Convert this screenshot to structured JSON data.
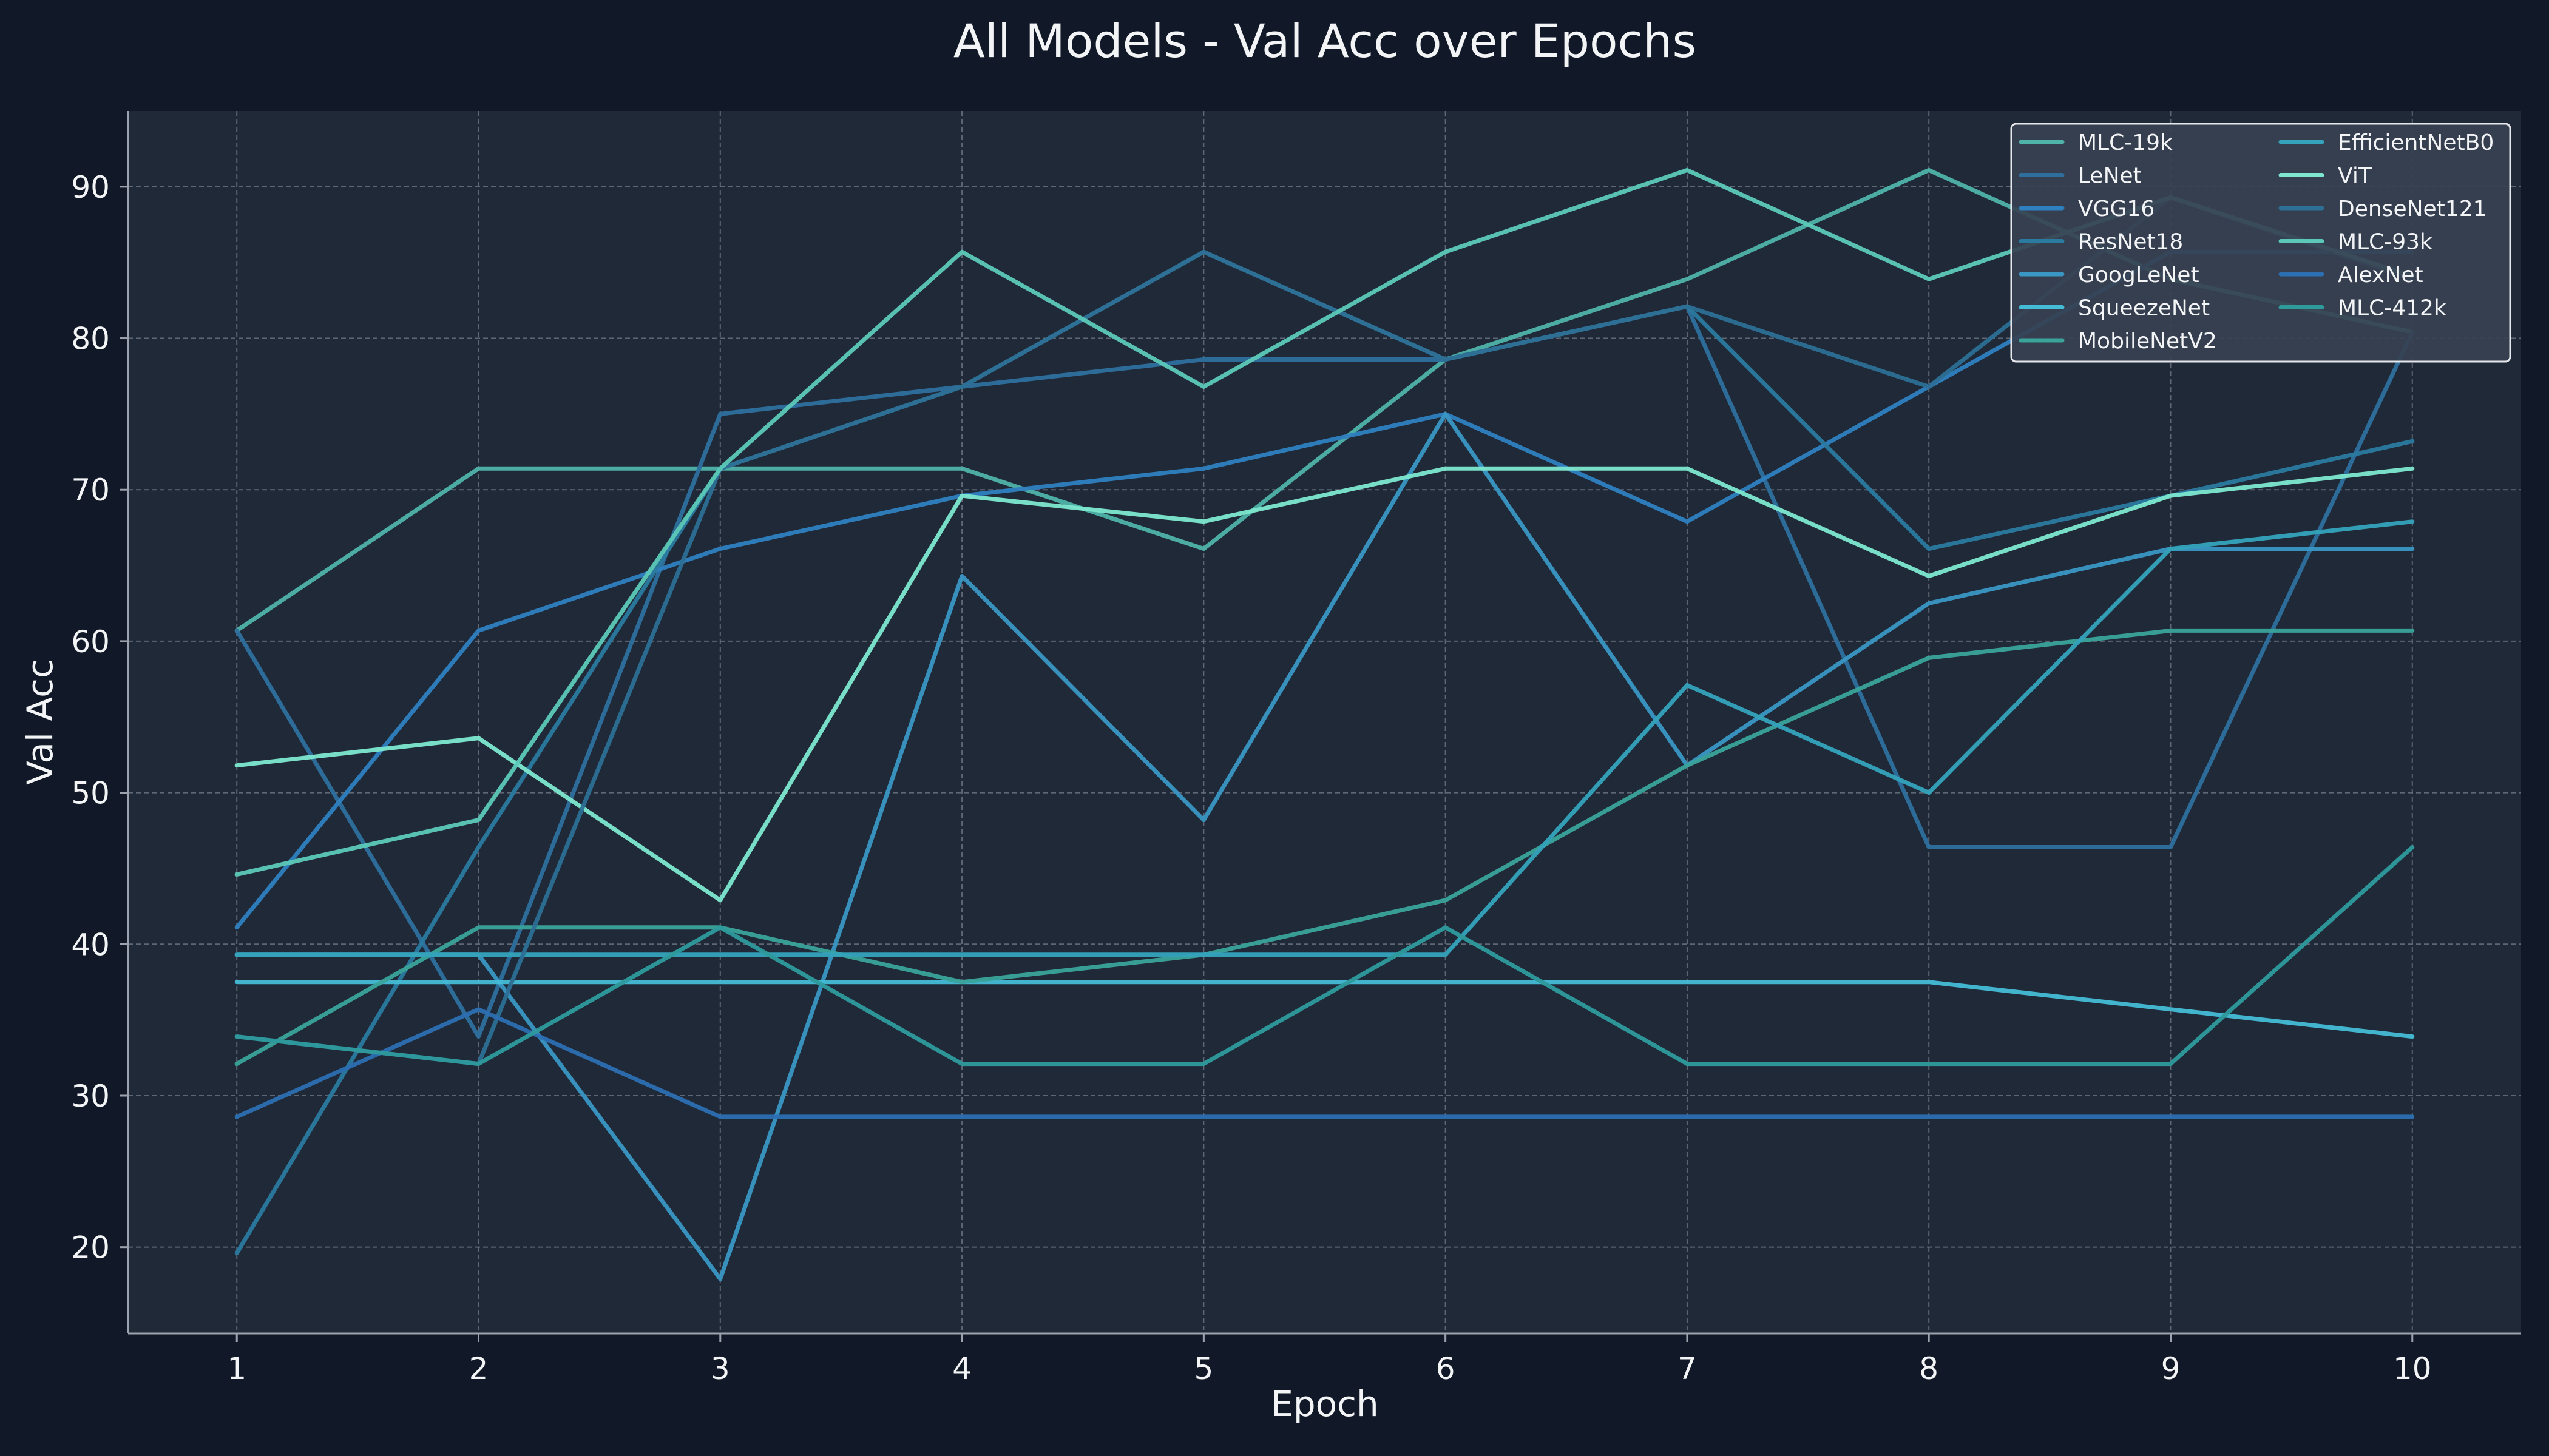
{
  "chart_data": {
    "type": "line",
    "title": "All Models - Val Acc over Epochs",
    "xlabel": "Epoch",
    "ylabel": "Val Acc",
    "x": [
      1,
      2,
      3,
      4,
      5,
      6,
      7,
      8,
      9,
      10
    ],
    "xlim": [
      0.55,
      10.45
    ],
    "ylim": [
      14.3,
      95
    ],
    "yticks": [
      20,
      30,
      40,
      50,
      60,
      70,
      80,
      90
    ],
    "grid": true,
    "legend_position": "top-right",
    "legend_columns": 2,
    "colors": {
      "page_background": "#111827",
      "plot_background": "#1f2937",
      "text": "#f3f4f6",
      "grid": "#6b7280",
      "axis": "#9ca3af"
    },
    "series": [
      {
        "name": "MLC-19k",
        "color": "#4fb3a9",
        "values": [
          60.7,
          71.4,
          71.4,
          71.4,
          66.1,
          78.6,
          83.9,
          91.1,
          83.9,
          80.4
        ]
      },
      {
        "name": "LeNet",
        "color": "#2e6f9e",
        "values": [
          60.7,
          33.9,
          75.0,
          76.8,
          78.6,
          78.6,
          82.1,
          46.4,
          46.4,
          80.4
        ]
      },
      {
        "name": "VGG16",
        "color": "#2f80c0",
        "values": [
          41.1,
          60.7,
          66.1,
          69.6,
          71.4,
          75.0,
          67.9,
          76.8,
          85.7,
          85.7
        ]
      },
      {
        "name": "ResNet18",
        "color": "#2b7aa0",
        "values": [
          19.6,
          46.4,
          71.4,
          76.8,
          85.7,
          78.6,
          82.1,
          66.1,
          69.6,
          73.2
        ]
      },
      {
        "name": "GoogLeNet",
        "color": "#3a97c4",
        "values": [
          39.3,
          39.3,
          17.9,
          64.3,
          48.2,
          75.0,
          51.8,
          62.5,
          66.1,
          66.1
        ]
      },
      {
        "name": "SqueezeNet",
        "color": "#45bcd6",
        "values": [
          37.5,
          37.5,
          37.5,
          37.5,
          37.5,
          37.5,
          37.5,
          37.5,
          35.7,
          33.9
        ]
      },
      {
        "name": "MobileNetV2",
        "color": "#3aa39a",
        "values": [
          32.1,
          41.1,
          41.1,
          37.5,
          39.3,
          42.9,
          51.8,
          58.9,
          60.7,
          60.7
        ]
      },
      {
        "name": "EfficientNetB0",
        "color": "#34a3bb",
        "values": [
          39.3,
          39.3,
          39.3,
          39.3,
          39.3,
          39.3,
          57.1,
          50.0,
          66.1,
          67.9
        ]
      },
      {
        "name": "ViT",
        "color": "#7de8cf",
        "values": [
          51.8,
          53.6,
          42.9,
          69.6,
          67.9,
          71.4,
          71.4,
          64.3,
          69.6,
          71.4
        ]
      },
      {
        "name": "DenseNet121",
        "color": "#2d6f95",
        "values": [
          33.9,
          32.1,
          71.4,
          76.8,
          85.7,
          78.6,
          82.1,
          76.8,
          89.3,
          83.9
        ]
      },
      {
        "name": "MLC-93k",
        "color": "#5cc9b8",
        "values": [
          44.6,
          48.2,
          71.4,
          85.7,
          76.8,
          85.7,
          91.1,
          83.9,
          89.3,
          84.1
        ]
      },
      {
        "name": "AlexNet",
        "color": "#2c6fb2",
        "values": [
          28.6,
          35.7,
          28.6,
          28.6,
          28.6,
          28.6,
          28.6,
          28.6,
          28.6,
          28.6
        ]
      },
      {
        "name": "MLC-412k",
        "color": "#2e9a9c",
        "values": [
          33.9,
          32.1,
          41.1,
          32.1,
          32.1,
          41.1,
          32.1,
          32.1,
          32.1,
          46.4
        ]
      }
    ]
  }
}
